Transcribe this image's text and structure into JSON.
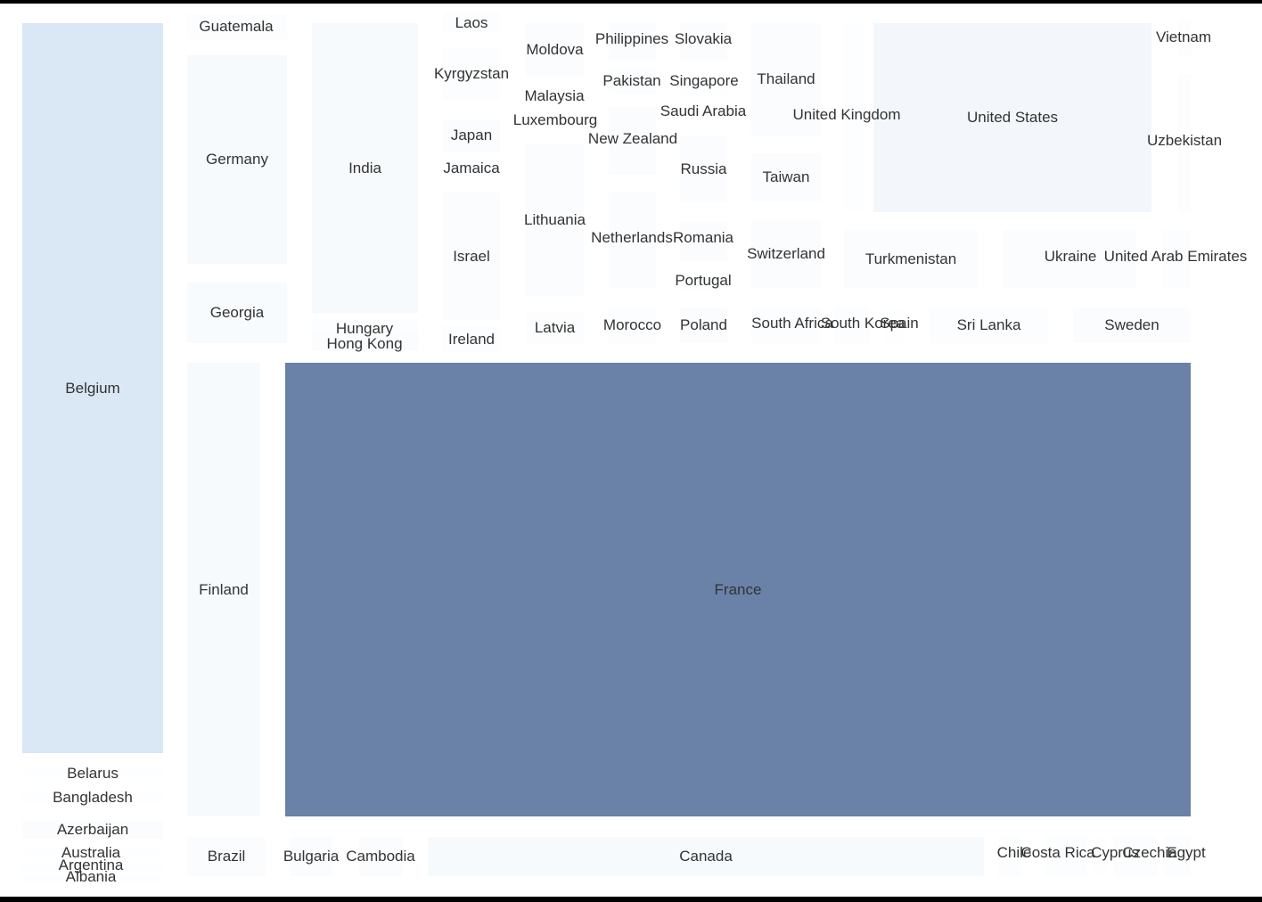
{
  "chart_data": {
    "type": "treemap",
    "title": "",
    "colors": {
      "low": "#ffffff",
      "mid": "#dae7f4",
      "high": "#6a81a8",
      "label": "#333333"
    },
    "value_scale_max": 100,
    "items": [
      {
        "name": "Belgium",
        "value": 22
      },
      {
        "name": "Belarus",
        "value": 1
      },
      {
        "name": "Bangladesh",
        "value": 1
      },
      {
        "name": "Azerbaijan",
        "value": 3
      },
      {
        "name": "Australia",
        "value": 1
      },
      {
        "name": "Argentina",
        "value": 1
      },
      {
        "name": "Albania",
        "value": 1
      },
      {
        "name": "Guatemala",
        "value": 2
      },
      {
        "name": "Germany",
        "value": 5
      },
      {
        "name": "Georgia",
        "value": 4
      },
      {
        "name": "Finland",
        "value": 5
      },
      {
        "name": "India",
        "value": 5
      },
      {
        "name": "Hungary",
        "value": 2
      },
      {
        "name": "Hong Kong",
        "value": 3
      },
      {
        "name": "France",
        "value": 100
      },
      {
        "name": "Brazil",
        "value": 3
      },
      {
        "name": "Bulgaria",
        "value": 3
      },
      {
        "name": "Cambodia",
        "value": 3
      },
      {
        "name": "Canada",
        "value": 5
      },
      {
        "name": "Chile",
        "value": 2
      },
      {
        "name": "Costa Rica",
        "value": 2
      },
      {
        "name": "Cyprus",
        "value": 1
      },
      {
        "name": "Czechia",
        "value": 2
      },
      {
        "name": "Egypt",
        "value": 2
      },
      {
        "name": "Laos",
        "value": 2
      },
      {
        "name": "Kyrgyzstan",
        "value": 2
      },
      {
        "name": "Japan",
        "value": 3
      },
      {
        "name": "Jamaica",
        "value": 1
      },
      {
        "name": "Israel",
        "value": 3
      },
      {
        "name": "Ireland",
        "value": 2
      },
      {
        "name": "Moldova",
        "value": 3
      },
      {
        "name": "Malaysia",
        "value": 2
      },
      {
        "name": "Luxembourg",
        "value": 1
      },
      {
        "name": "Lithuania",
        "value": 3
      },
      {
        "name": "Latvia",
        "value": 2
      },
      {
        "name": "Philippines",
        "value": 3
      },
      {
        "name": "Pakistan",
        "value": 2
      },
      {
        "name": "New Zealand",
        "value": 3
      },
      {
        "name": "Netherlands",
        "value": 3
      },
      {
        "name": "Morocco",
        "value": 2
      },
      {
        "name": "Slovakia",
        "value": 3
      },
      {
        "name": "Singapore",
        "value": 1
      },
      {
        "name": "Saudi Arabia",
        "value": 1
      },
      {
        "name": "Russia",
        "value": 3
      },
      {
        "name": "Romania",
        "value": 3
      },
      {
        "name": "Portugal",
        "value": 1
      },
      {
        "name": "Poland",
        "value": 3
      },
      {
        "name": "Thailand",
        "value": 3
      },
      {
        "name": "Taiwan",
        "value": 3
      },
      {
        "name": "Switzerland",
        "value": 3
      },
      {
        "name": "South Africa",
        "value": 2
      },
      {
        "name": "South Korea",
        "value": 2
      },
      {
        "name": "Spain",
        "value": 1
      },
      {
        "name": "United Kingdom",
        "value": 1
      },
      {
        "name": "United States",
        "value": 7
      },
      {
        "name": "Turkmenistan",
        "value": 3
      },
      {
        "name": "Ukraine",
        "value": 3
      },
      {
        "name": "United Arab Emirates",
        "value": 2
      },
      {
        "name": "Sri Lanka",
        "value": 2
      },
      {
        "name": "Sweden",
        "value": 3
      },
      {
        "name": "Vietnam",
        "value": 2
      },
      {
        "name": "Uzbekistan",
        "value": 2
      }
    ]
  }
}
